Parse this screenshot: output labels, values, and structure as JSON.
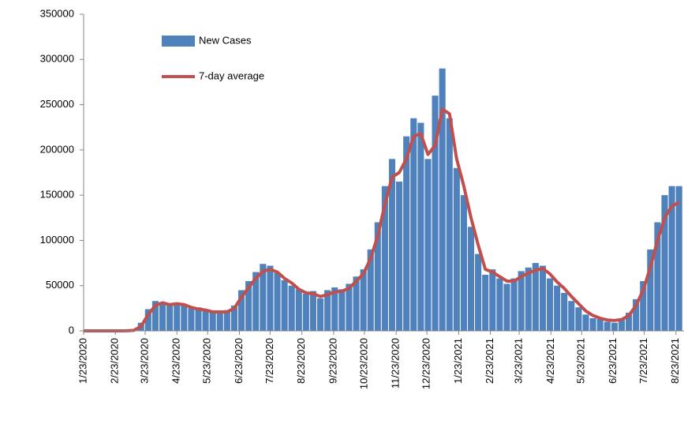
{
  "chart_data": {
    "type": "bar-line",
    "x": [
      "1/23/2020",
      "1/30/2020",
      "2/6/2020",
      "2/13/2020",
      "2/20/2020",
      "2/27/2020",
      "3/5/2020",
      "3/12/2020",
      "3/19/2020",
      "3/26/2020",
      "4/2/2020",
      "4/9/2020",
      "4/16/2020",
      "4/23/2020",
      "4/30/2020",
      "5/7/2020",
      "5/14/2020",
      "5/21/2020",
      "5/28/2020",
      "6/4/2020",
      "6/11/2020",
      "6/18/2020",
      "6/25/2020",
      "7/2/2020",
      "7/9/2020",
      "7/16/2020",
      "7/23/2020",
      "7/30/2020",
      "8/6/2020",
      "8/13/2020",
      "8/20/2020",
      "8/27/2020",
      "9/3/2020",
      "9/10/2020",
      "9/17/2020",
      "9/24/2020",
      "10/1/2020",
      "10/8/2020",
      "10/15/2020",
      "10/22/2020",
      "10/29/2020",
      "11/5/2020",
      "11/12/2020",
      "11/19/2020",
      "11/26/2020",
      "12/3/2020",
      "12/10/2020",
      "12/17/2020",
      "12/24/2020",
      "12/31/2020",
      "1/7/2021",
      "1/14/2021",
      "1/21/2021",
      "1/28/2021",
      "2/4/2021",
      "2/11/2021",
      "2/18/2021",
      "2/25/2021",
      "3/4/2021",
      "3/11/2021",
      "3/18/2021",
      "3/25/2021",
      "4/1/2021",
      "4/8/2021",
      "4/15/2021",
      "4/22/2021",
      "4/29/2021",
      "5/6/2021",
      "5/13/2021",
      "5/20/2021",
      "5/27/2021",
      "6/3/2021",
      "6/10/2021",
      "6/17/2021",
      "6/24/2021",
      "7/1/2021",
      "7/8/2021",
      "7/15/2021",
      "7/22/2021",
      "7/29/2021",
      "8/5/2021",
      "8/12/2021",
      "8/19/2021",
      "8/26/2021"
    ],
    "series": [
      {
        "name": "New Cases",
        "color": "#4f81bd",
        "values": [
          0,
          0,
          0,
          0,
          0,
          0,
          200,
          1000,
          9000,
          24000,
          33000,
          32000,
          30000,
          31000,
          28000,
          25000,
          26000,
          22000,
          22000,
          20000,
          23000,
          28000,
          45000,
          55000,
          65000,
          74000,
          72000,
          64000,
          56000,
          50000,
          46000,
          41000,
          44000,
          36000,
          45000,
          48000,
          46000,
          52000,
          60000,
          68000,
          90000,
          120000,
          160000,
          190000,
          165000,
          215000,
          235000,
          230000,
          190000,
          260000,
          290000,
          235000,
          180000,
          150000,
          115000,
          85000,
          62000,
          68000,
          58000,
          52000,
          58000,
          66000,
          70000,
          75000,
          72000,
          58000,
          50000,
          42000,
          33000,
          26000,
          18000,
          14000,
          13000,
          10000,
          9000,
          14000,
          20000,
          35000,
          55000,
          90000,
          120000,
          150000,
          160000,
          160000
        ]
      },
      {
        "name": "7-day average",
        "color": "#c0504d",
        "values": [
          0,
          0,
          0,
          0,
          0,
          0,
          100,
          500,
          5000,
          18000,
          28000,
          31000,
          29000,
          30000,
          29000,
          26000,
          24000,
          23000,
          21000,
          21000,
          21000,
          25000,
          37000,
          48000,
          58000,
          66000,
          68000,
          65000,
          58000,
          53000,
          46000,
          42000,
          41000,
          38000,
          40000,
          43000,
          44000,
          47000,
          55000,
          63000,
          80000,
          105000,
          140000,
          170000,
          175000,
          190000,
          215000,
          218000,
          195000,
          205000,
          245000,
          240000,
          190000,
          160000,
          125000,
          95000,
          68000,
          65000,
          60000,
          55000,
          55000,
          60000,
          64000,
          67000,
          69000,
          63000,
          54000,
          47000,
          38000,
          30000,
          22000,
          17000,
          14000,
          12000,
          11500,
          12500,
          17000,
          28000,
          45000,
          70000,
          100000,
          125000,
          138000,
          142000
        ]
      }
    ],
    "xlim": [
      "1/23/2020",
      "8/27/2021"
    ],
    "xticks": [
      "1/23/2020",
      "2/23/2020",
      "3/23/2020",
      "4/23/2020",
      "5/23/2020",
      "6/23/2020",
      "7/23/2020",
      "8/23/2020",
      "9/23/2020",
      "10/23/2020",
      "11/23/2020",
      "12/23/2020",
      "1/23/2021",
      "2/23/2021",
      "3/23/2021",
      "4/23/2021",
      "5/23/2021",
      "6/23/2021",
      "7/23/2021",
      "8/23/2021"
    ],
    "ylim": [
      0,
      350000
    ],
    "yticks": [
      0,
      50000,
      100000,
      150000,
      200000,
      250000,
      300000,
      350000
    ],
    "legend": "top-left"
  }
}
